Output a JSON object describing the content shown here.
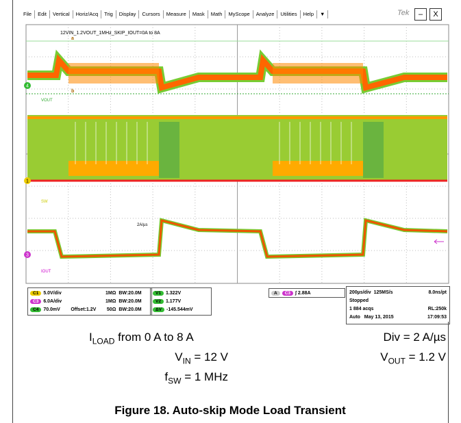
{
  "scope": {
    "menu": [
      "File",
      "Edit",
      "Vertical",
      "Horiz/Acq",
      "Trig",
      "Display",
      "Cursors",
      "Measure",
      "Mask",
      "Math",
      "MyScope",
      "Analyze",
      "Utilities",
      "Help",
      "▼"
    ],
    "brand": "Tek",
    "minimize": "–",
    "close": "X",
    "screen": {
      "title": "12VIN_1.2VOUT_1MHz_SKIP_IOUT=0A to 8A",
      "vout": "VOUT",
      "sw": "SW",
      "slew": "2A/µs",
      "iout": "IOUT",
      "marker_c4": "4",
      "marker_c1": "1",
      "marker_c3": "3",
      "cursor_a": "a",
      "cursor_b": "b"
    },
    "channels": [
      {
        "id": "C1",
        "scale": "5.0V/div",
        "offset": "",
        "impedance": "1MΩ",
        "bw": "BW:20.0M"
      },
      {
        "id": "C3",
        "scale": "6.0A/div",
        "offset": "",
        "impedance": "1MΩ",
        "bw": "BW:20.0M"
      },
      {
        "id": "C4",
        "scale": "70.0mV",
        "offset": "Offset:1.2V",
        "impedance": "50Ω",
        "bw": "BW:20.0M"
      }
    ],
    "measurements": [
      {
        "id": "V1",
        "value": "1.322V"
      },
      {
        "id": "V2",
        "value": "1.177V"
      },
      {
        "id": "ΔV",
        "value": "-145.544mV"
      }
    ],
    "trigger": {
      "mode": "A",
      "source": "C3",
      "slope": "∫",
      "level": "2.88A"
    },
    "horizontal": {
      "scale": "200µs/div",
      "rate": "125MS/s",
      "resolution": "8.0ns/pt",
      "state": "Stopped",
      "acqs": "1 884 acqs",
      "record": "RL:250k",
      "trig_mode": "Auto",
      "date": "May 13, 2015",
      "time": "17:09:53"
    }
  },
  "captions": {
    "iload": {
      "main": "I",
      "sub": "LOAD",
      "rest": " from 0 A to 8 A"
    },
    "vin": {
      "main": "V",
      "sub": "IN",
      "rest": " = 12 V"
    },
    "fsw": {
      "main": "f",
      "sub": "SW",
      "rest": " = 1 MHz"
    },
    "div": "Div = 2 A/µs",
    "vout": {
      "main": "V",
      "sub": "OUT",
      "rest": " = 1.2 V"
    }
  },
  "figure_title": "Figure 18. Auto-skip Mode Load Transient"
}
